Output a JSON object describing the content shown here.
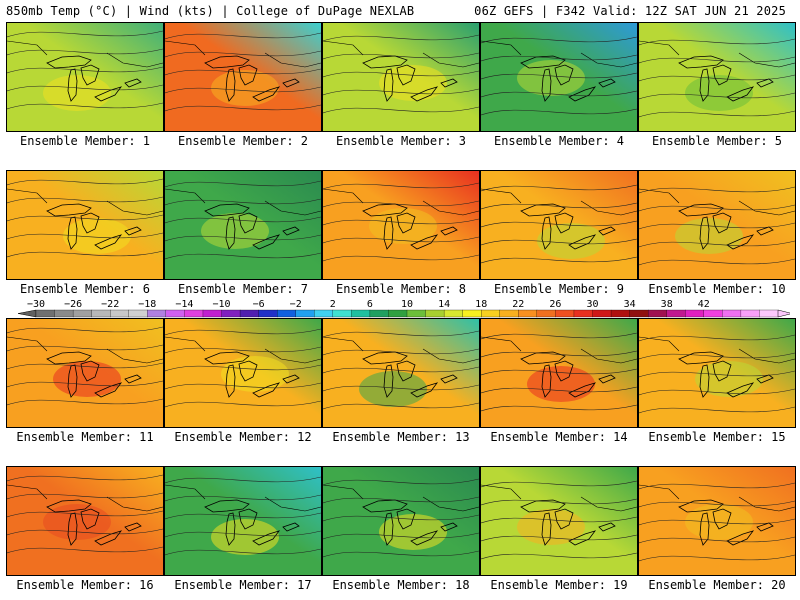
{
  "header": {
    "left": "850mb Temp (°C) | Wind (kts) | College of DuPage NEXLAB",
    "right": "06Z GEFS | F342 Valid: 12Z SAT JUN 21 2025"
  },
  "members": [
    {
      "label": "Ensemble Member: 1",
      "base": "#b8d836",
      "east": "#3fb07a",
      "accent": "#f0e020"
    },
    {
      "label": "Ensemble Member: 2",
      "base": "#f06a20",
      "east": "#3cd0d0",
      "accent": "#f8b020"
    },
    {
      "label": "Ensemble Member: 3",
      "base": "#b8d836",
      "east": "#2aa070",
      "accent": "#f0e020"
    },
    {
      "label": "Ensemble Member: 4",
      "base": "#3fa84a",
      "east": "#2d9ad8",
      "accent": "#b8d836"
    },
    {
      "label": "Ensemble Member: 5",
      "base": "#b8d836",
      "east": "#2fc0c8",
      "accent": "#6cbf3a"
    },
    {
      "label": "Ensemble Member: 6",
      "base": "#f8b020",
      "east": "#b8d836",
      "accent": "#f0e020"
    },
    {
      "label": "Ensemble Member: 7",
      "base": "#3fa84a",
      "east": "#2a8a50",
      "accent": "#b8d836"
    },
    {
      "label": "Ensemble Member: 8",
      "base": "#f8a020",
      "east": "#e83020",
      "accent": "#f0c020"
    },
    {
      "label": "Ensemble Member: 9",
      "base": "#f8b020",
      "east": "#f07020",
      "accent": "#b8d836"
    },
    {
      "label": "Ensemble Member: 10",
      "base": "#f8a020",
      "east": "#f0c020",
      "accent": "#b8d836"
    },
    {
      "label": "Ensemble Member: 11",
      "base": "#f8a020",
      "east": "#f0c020",
      "accent": "#e83020"
    },
    {
      "label": "Ensemble Member: 12",
      "base": "#f8b020",
      "east": "#3fa84a",
      "accent": "#f0e020"
    },
    {
      "label": "Ensemble Member: 13",
      "base": "#f8b020",
      "east": "#2fc0a8",
      "accent": "#3fa84a"
    },
    {
      "label": "Ensemble Member: 14",
      "base": "#f8a020",
      "east": "#3fa84a",
      "accent": "#e83020"
    },
    {
      "label": "Ensemble Member: 15",
      "base": "#f8b020",
      "east": "#3fa84a",
      "accent": "#b8d836"
    },
    {
      "label": "Ensemble Member: 16",
      "base": "#f07020",
      "east": "#f8b020",
      "accent": "#e84a20"
    },
    {
      "label": "Ensemble Member: 17",
      "base": "#3fa84a",
      "east": "#2fc0c8",
      "accent": "#f0e020"
    },
    {
      "label": "Ensemble Member: 18",
      "base": "#3fa84a",
      "east": "#2a8a50",
      "accent": "#f0e020"
    },
    {
      "label": "Ensemble Member: 19",
      "base": "#b8d836",
      "east": "#3fa84a",
      "accent": "#f8b020"
    },
    {
      "label": "Ensemble Member: 20",
      "base": "#f8a020",
      "east": "#f07020",
      "accent": "#f0c020"
    }
  ],
  "colorbar": {
    "tick_labels": [
      "-30",
      "-26",
      "-22",
      "-18",
      "-14",
      "-10",
      "-6",
      "-2",
      "2",
      "6",
      "10",
      "14",
      "18",
      "22",
      "26",
      "30",
      "34",
      "38",
      "42"
    ],
    "colors": [
      "#707070",
      "#8a8a8a",
      "#a0a0a0",
      "#b8b8b8",
      "#c8c8c8",
      "#d0d0d0",
      "#b080e0",
      "#d060f0",
      "#e040e0",
      "#c020d0",
      "#8020c0",
      "#5020b0",
      "#2030c8",
      "#1060e0",
      "#20a0f0",
      "#40d0f0",
      "#40e0d0",
      "#20c0a0",
      "#20a060",
      "#30a040",
      "#6cbf3a",
      "#a8d030",
      "#d8e830",
      "#f8f020",
      "#f8d020",
      "#f8b020",
      "#f89020",
      "#f07020",
      "#f05020",
      "#e83020",
      "#d01818",
      "#b01010",
      "#901010",
      "#a01050",
      "#c01890",
      "#e020c0",
      "#f040e0",
      "#f070f0",
      "#f8a0f8",
      "#fcc8fc"
    ]
  }
}
